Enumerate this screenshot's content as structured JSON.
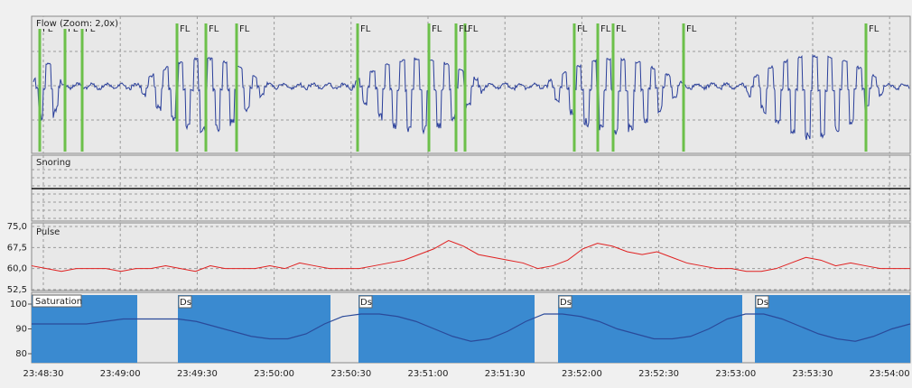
{
  "flow": {
    "title": "Flow (Zoom: 2,0x)",
    "event_labels": [
      "FL",
      "FL",
      "FL",
      "FL",
      "FL",
      "FL",
      "FL",
      "FL",
      "FL",
      "FL",
      "FL",
      "FL",
      "FL",
      "FL",
      "FL"
    ]
  },
  "snoring": {
    "title": "Snoring"
  },
  "pulse": {
    "title": "Pulse",
    "color": "#e02020",
    "ylim": [
      52.5,
      75
    ],
    "yticks": [
      {
        "value": 75,
        "label": "75,0"
      },
      {
        "value": 67.5,
        "label": "67,5"
      },
      {
        "value": 60,
        "label": "60,0"
      },
      {
        "value": 52.5,
        "label": "52,5"
      }
    ],
    "values": [
      61,
      60,
      59,
      60,
      60,
      60,
      59,
      60,
      60,
      61,
      60,
      59,
      61,
      60,
      60,
      60,
      61,
      60,
      62,
      61,
      60,
      60,
      60,
      61,
      62,
      63,
      65,
      67,
      70,
      68,
      65,
      64,
      63,
      62,
      60,
      61,
      63,
      67,
      69,
      68,
      66,
      65,
      66,
      64,
      62,
      61,
      60,
      60,
      59,
      59,
      60,
      62,
      64,
      63,
      61,
      62,
      61,
      60,
      60,
      60
    ]
  },
  "saturation": {
    "title": "Saturation",
    "color": "#2a4a9a",
    "event_color": "#3a8ad0",
    "ylim": [
      76,
      102
    ],
    "yticks": [
      100,
      90,
      80
    ],
    "values": [
      92,
      92,
      92,
      92,
      93,
      94,
      94,
      94,
      94,
      93,
      91,
      89,
      87,
      86,
      86,
      88,
      92,
      95,
      96,
      96,
      95,
      93,
      90,
      87,
      85,
      86,
      89,
      93,
      96,
      96,
      95,
      93,
      90,
      88,
      86,
      86,
      87,
      90,
      94,
      96,
      96,
      94,
      91,
      88,
      86,
      85,
      87,
      90,
      92
    ],
    "event_labels": [
      "Ds",
      "Ds",
      "Ds",
      "Ds"
    ]
  },
  "time_ticks": [
    "23:48:30",
    "23:49:00",
    "23:49:30",
    "23:50:00",
    "23:50:30",
    "23:51:00",
    "23:51:30",
    "23:52:00",
    "23:52:30",
    "23:53:00",
    "23:53:30",
    "23:54:00"
  ]
}
